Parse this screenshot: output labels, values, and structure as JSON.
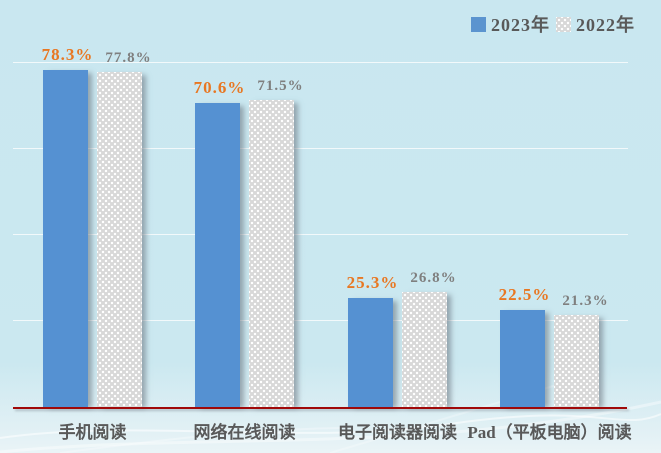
{
  "legend": {
    "items": [
      {
        "label": "2023年",
        "swatch": "solid"
      },
      {
        "label": "2022年",
        "swatch": "dotted"
      }
    ]
  },
  "colors": {
    "background": "#cbe8f0",
    "bar_2023": "#5591d2",
    "bar_2022_base": "#d8d8d8",
    "bar_2022_dots": "#ffffff",
    "value_label_2023": "#e87722",
    "value_label_2022": "#7f7f7f",
    "axis_line": "#a00909",
    "category_text": "#595959",
    "legend_text": "#595959",
    "gridline": "rgba(255,255,255,0.75)"
  },
  "chart_data": {
    "type": "bar",
    "title": "",
    "xlabel": "",
    "ylabel": "",
    "categories": [
      "手机阅读",
      "网络在线阅读",
      "电子阅读器阅读",
      "Pad（平板电脑）阅读"
    ],
    "series": [
      {
        "name": "2023年",
        "values": [
          78.3,
          70.6,
          25.3,
          22.5
        ]
      },
      {
        "name": "2022年",
        "values": [
          77.8,
          71.5,
          26.8,
          21.3
        ]
      }
    ],
    "value_suffix": "%",
    "ylim": [
      0,
      100
    ],
    "gridlines": [
      20,
      40,
      60,
      80
    ],
    "grid": true,
    "legend_position": "top-right"
  }
}
